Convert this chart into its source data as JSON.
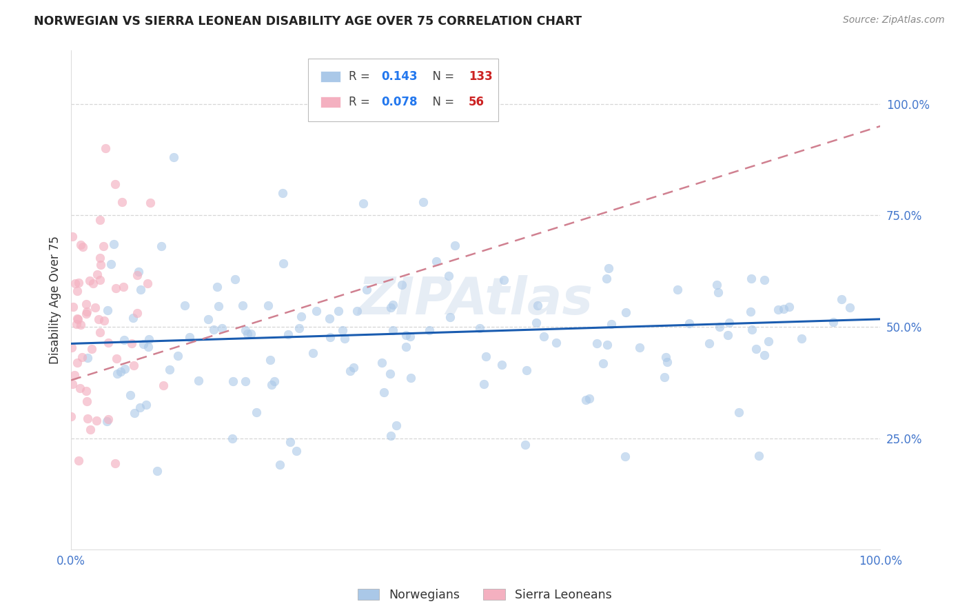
{
  "title": "NORWEGIAN VS SIERRA LEONEAN DISABILITY AGE OVER 75 CORRELATION CHART",
  "source": "Source: ZipAtlas.com",
  "ylabel": "Disability Age Over 75",
  "y_tick_labels": [
    "100.0%",
    "75.0%",
    "50.0%",
    "25.0%"
  ],
  "y_tick_positions": [
    1.0,
    0.75,
    0.5,
    0.25
  ],
  "xlim": [
    0.0,
    1.0
  ],
  "ylim": [
    0.0,
    1.12
  ],
  "legend_norwegian_R": 0.143,
  "legend_norwegian_N": 133,
  "legend_sierraleonean_R": 0.078,
  "legend_sierraleonean_N": 56,
  "norwegian_color": "#aac8e8",
  "sierraleonean_color": "#f4b0c0",
  "trend_norwegian_color": "#1a5cb0",
  "trend_sierraleonean_color": "#d08090",
  "watermark": "ZIPAtlas",
  "background_color": "#ffffff",
  "grid_color": "#cccccc",
  "title_color": "#222222",
  "source_color": "#888888",
  "axis_label_color": "#333333",
  "right_axis_color": "#4477cc",
  "bottom_legend_color": "#333333"
}
